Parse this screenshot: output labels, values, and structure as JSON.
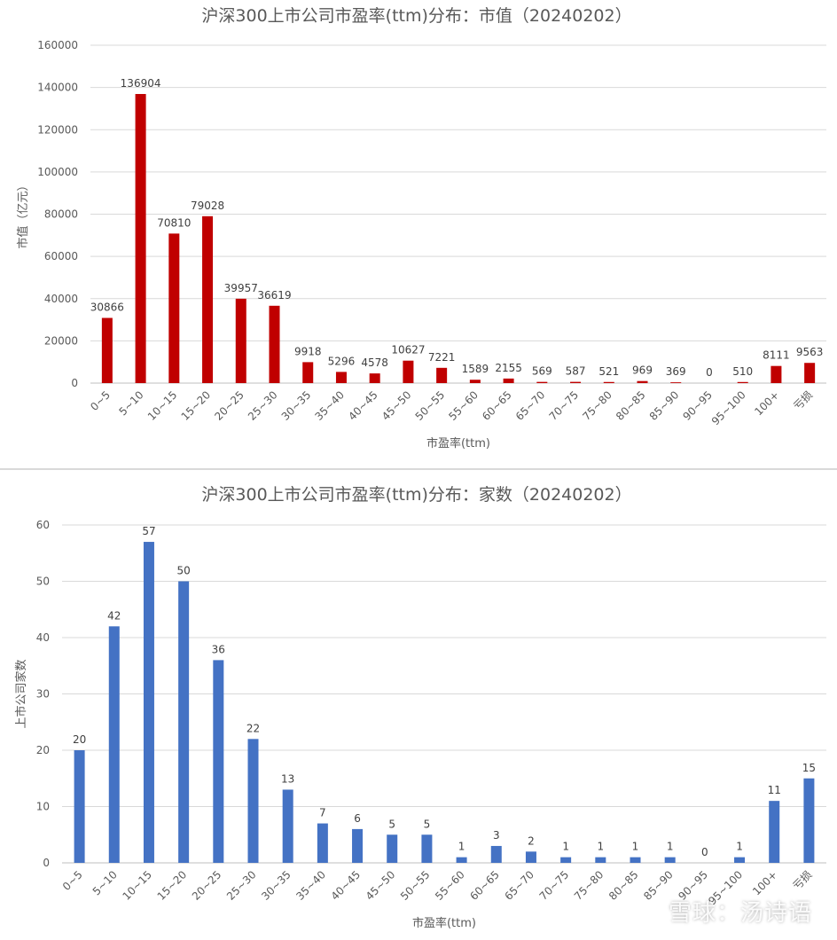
{
  "chart_data": [
    {
      "type": "bar",
      "title": "沪深300上市公司市盈率(ttm)分布：市值（20240202）",
      "xlabel": "市盈率(ttm)",
      "ylabel": "市值（亿元）",
      "ylim": [
        0,
        160000
      ],
      "yticks": [
        "0",
        "20000",
        "40000",
        "60000",
        "80000",
        "100000",
        "120000",
        "140000",
        "160000"
      ],
      "grid": true,
      "color": "#c00000",
      "categories": [
        "0~5",
        "5~10",
        "10~15",
        "15~20",
        "20~25",
        "25~30",
        "30~35",
        "35~40",
        "40~45",
        "45~50",
        "50~55",
        "55~60",
        "60~65",
        "65~70",
        "70~75",
        "75~80",
        "80~85",
        "85~90",
        "90~95",
        "95~100",
        "100+",
        "亏损"
      ],
      "values": [
        30866,
        136904,
        70810,
        79028,
        39957,
        36619,
        9918,
        5296,
        4578,
        10627,
        7221,
        1589,
        2155,
        569,
        587,
        521,
        969,
        369,
        0,
        510,
        8111,
        9563
      ]
    },
    {
      "type": "bar",
      "title": "沪深300上市公司市盈率(ttm)分布：家数（20240202）",
      "xlabel": "市盈率(ttm)",
      "ylabel": "上市公司家数",
      "ylim": [
        0,
        60
      ],
      "yticks": [
        "0",
        "10",
        "20",
        "30",
        "40",
        "50",
        "60"
      ],
      "grid": true,
      "color": "#4472c4",
      "categories": [
        "0~5",
        "5~10",
        "10~15",
        "15~20",
        "20~25",
        "25~30",
        "30~35",
        "35~40",
        "40~45",
        "45~50",
        "50~55",
        "55~60",
        "60~65",
        "65~70",
        "70~75",
        "75~80",
        "80~85",
        "85~90",
        "90~95",
        "95~100",
        "100+",
        "亏损"
      ],
      "values": [
        20,
        42,
        57,
        50,
        36,
        22,
        13,
        7,
        6,
        5,
        5,
        1,
        3,
        2,
        1,
        1,
        1,
        1,
        0,
        1,
        11,
        15
      ]
    }
  ],
  "watermark": "雪球：汤诗语"
}
